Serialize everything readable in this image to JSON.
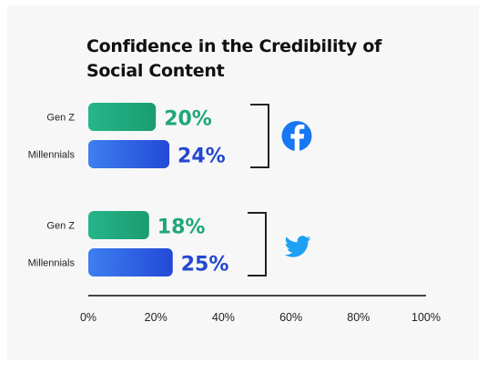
{
  "chart_data": {
    "type": "bar",
    "orientation": "horizontal",
    "title": "Confidence in the Credibility of Social Content",
    "xlabel": "",
    "ylabel": "",
    "xlim": [
      0,
      100
    ],
    "x_ticks": [
      "0%",
      "20%",
      "40%",
      "60%",
      "80%",
      "100%"
    ],
    "grid": false,
    "groups": [
      {
        "platform_icon": "facebook-icon",
        "bars": [
          {
            "category": "Gen Z",
            "value": 20,
            "label": "20%",
            "color": "#1fa67a"
          },
          {
            "category": "Millennials",
            "value": 24,
            "label": "24%",
            "color": "#2f5ee3"
          }
        ]
      },
      {
        "platform_icon": "twitter-icon",
        "bars": [
          {
            "category": "Gen Z",
            "value": 18,
            "label": "18%",
            "color": "#1fa67a"
          },
          {
            "category": "Millennials",
            "value": 25,
            "label": "25%",
            "color": "#2f5ee3"
          }
        ]
      }
    ],
    "colors": {
      "genz_start": "#27b58a",
      "genz_end": "#1a9c70",
      "genz_label": "#1fa67a",
      "millennial_start": "#3d7ff0",
      "millennial_end": "#2349d6",
      "millennial_label": "#2447cf",
      "axis": "#444444",
      "facebook": "#1877f2",
      "twitter": "#1da1f2"
    }
  }
}
